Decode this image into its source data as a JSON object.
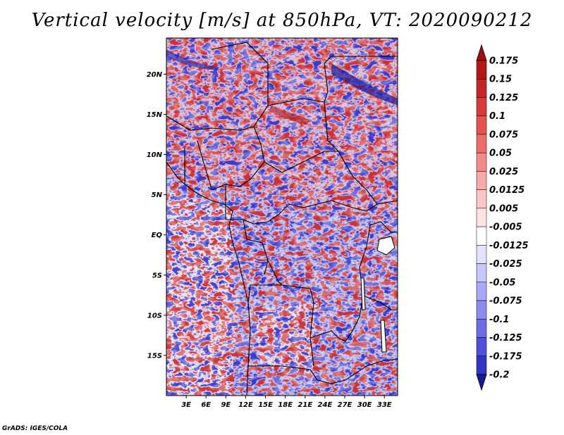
{
  "title": "Vertical velocity [m/s] at 850hPa, VT: 2020090212",
  "credit": "GrADS: IGES/COLA",
  "map": {
    "projection": "lat-lon",
    "lon_range": [
      0,
      35
    ],
    "lat_range": [
      -20,
      24.5
    ],
    "lat_labels": [
      {
        "value": 20,
        "text": "20N"
      },
      {
        "value": 15,
        "text": "15N"
      },
      {
        "value": 10,
        "text": "10N"
      },
      {
        "value": 5,
        "text": "5N"
      },
      {
        "value": 0,
        "text": "EQ"
      },
      {
        "value": -5,
        "text": "5S"
      },
      {
        "value": -10,
        "text": "10S"
      },
      {
        "value": -15,
        "text": "15S"
      }
    ],
    "lon_labels": [
      {
        "value": 3,
        "text": "3E"
      },
      {
        "value": 6,
        "text": "6E"
      },
      {
        "value": 9,
        "text": "9E"
      },
      {
        "value": 12,
        "text": "12E"
      },
      {
        "value": 15,
        "text": "15E"
      },
      {
        "value": 18,
        "text": "18E"
      },
      {
        "value": 21,
        "text": "21E"
      },
      {
        "value": 24,
        "text": "24E"
      },
      {
        "value": 27,
        "text": "27E"
      },
      {
        "value": 30,
        "text": "30E"
      },
      {
        "value": 33,
        "text": "33E"
      }
    ]
  },
  "colorbar": {
    "levels": [
      {
        "label": "0.175",
        "color": "#b01818"
      },
      {
        "label": "0.15",
        "color": "#c42626"
      },
      {
        "label": "0.125",
        "color": "#d63a3a"
      },
      {
        "label": "0.1",
        "color": "#e45252"
      },
      {
        "label": "0.075",
        "color": "#ec6c6c"
      },
      {
        "label": "0.05",
        "color": "#f28a8a"
      },
      {
        "label": "0.025",
        "color": "#f7a8a8"
      },
      {
        "label": "0.0125",
        "color": "#fbc6c6"
      },
      {
        "label": "0.005",
        "color": "#fde2e2"
      },
      {
        "label": "-0.005",
        "color": "#ffffff"
      },
      {
        "label": "-0.0125",
        "color": "#e2e2fd"
      },
      {
        "label": "-0.025",
        "color": "#c6c6fb"
      },
      {
        "label": "-0.05",
        "color": "#a8a8f6"
      },
      {
        "label": "-0.075",
        "color": "#8a8aef"
      },
      {
        "label": "-0.1",
        "color": "#6c6ce6"
      },
      {
        "label": "-0.125",
        "color": "#5050d8"
      },
      {
        "label": "-0.175",
        "color": "#3434c4"
      },
      {
        "label": "-0.2",
        "color": "#2222aa"
      }
    ],
    "top_arrow_color": "#a01010",
    "bottom_arrow_color": "#1a1a90"
  }
}
